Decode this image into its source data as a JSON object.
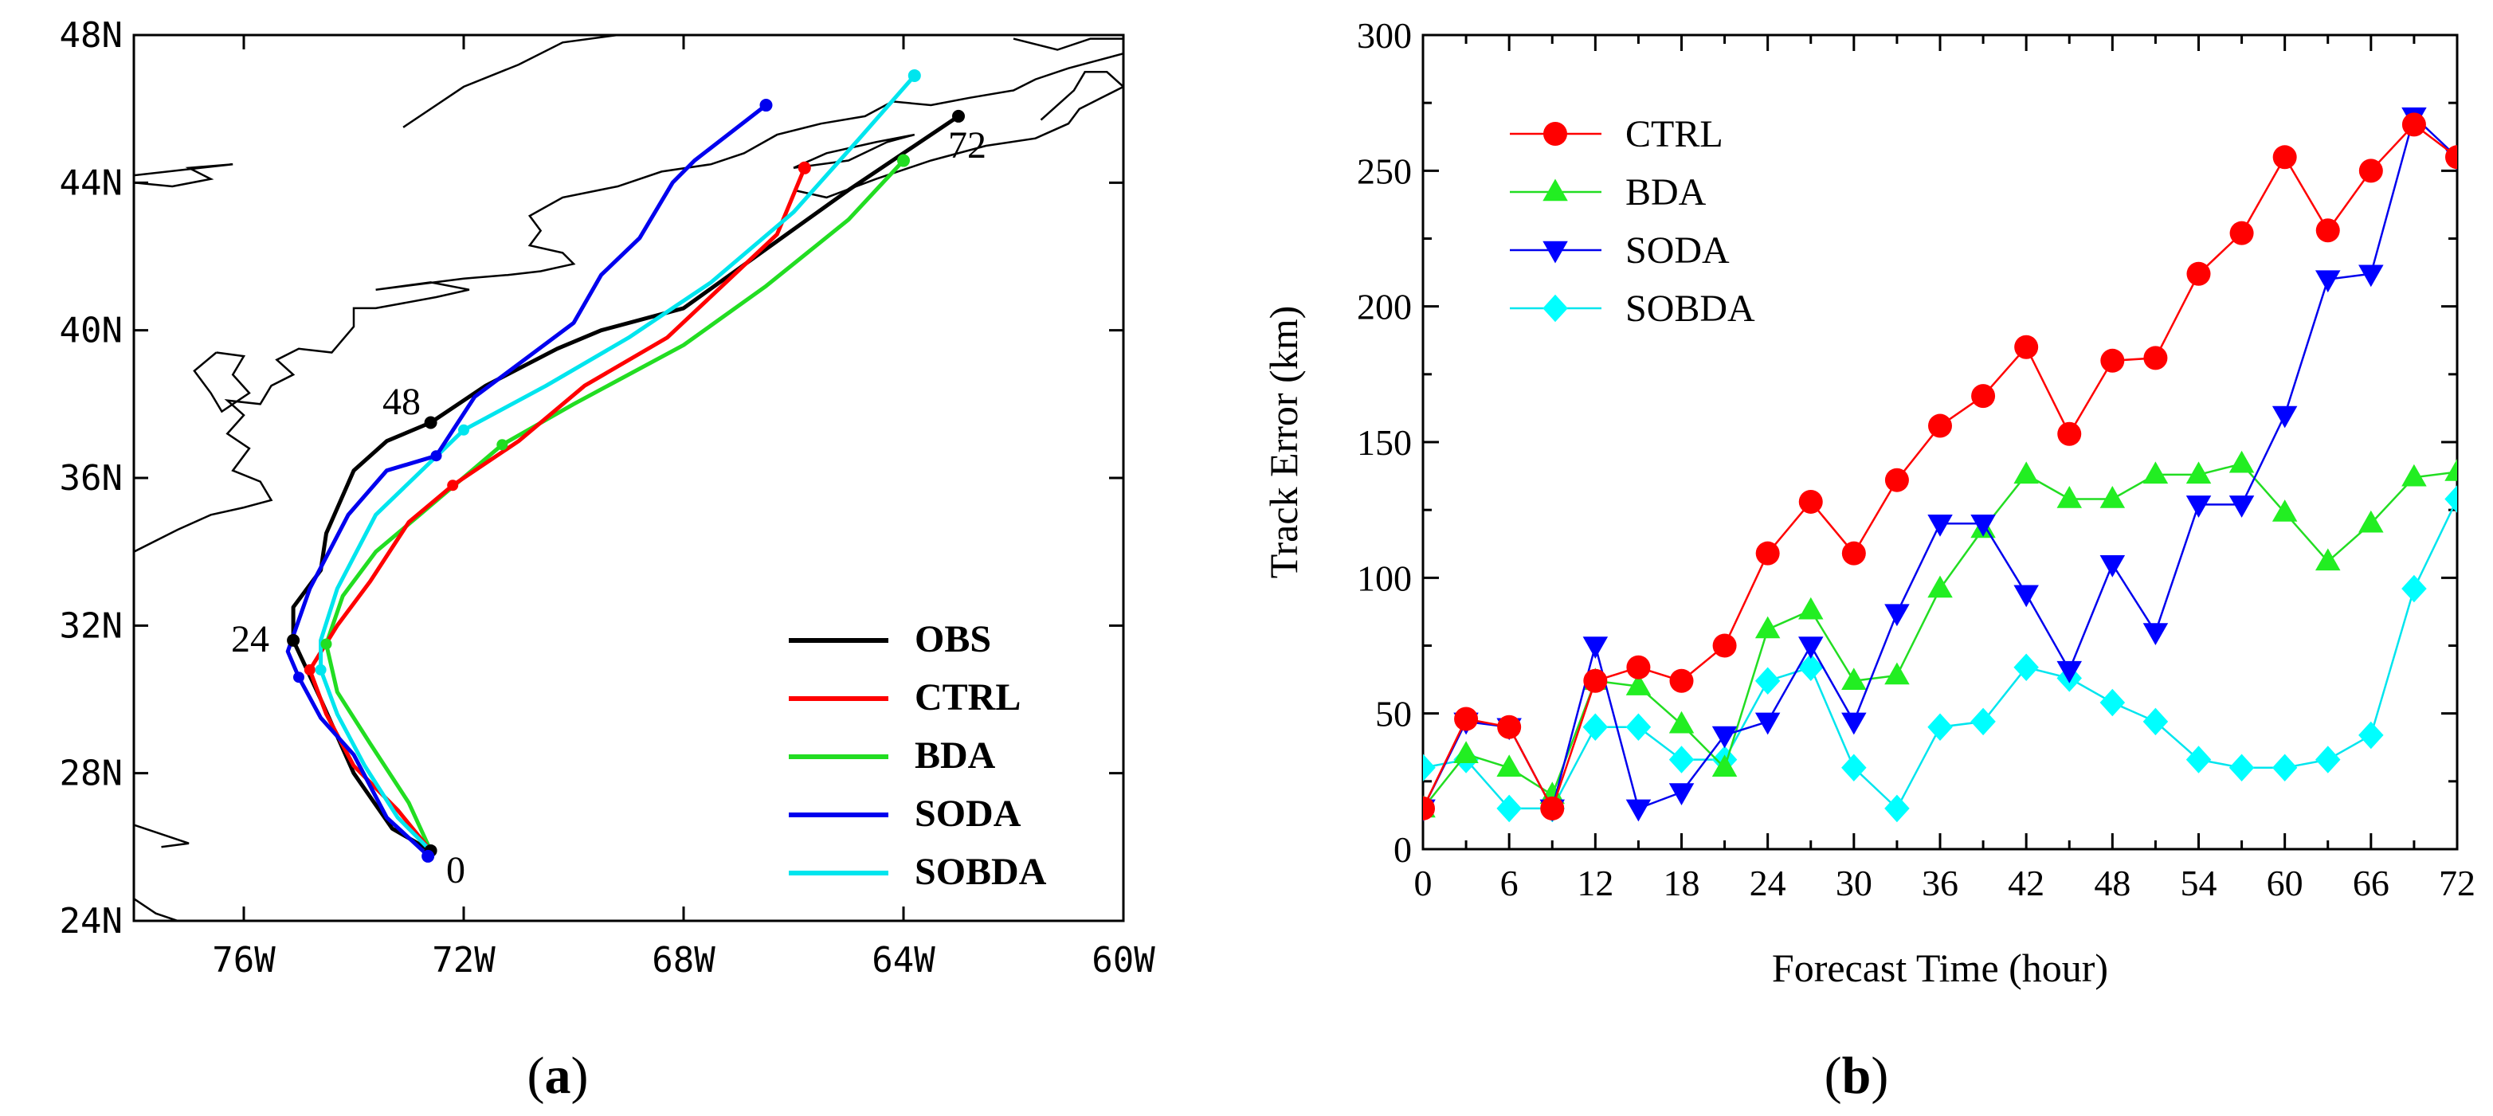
{
  "panel_a": {
    "label_open": "(",
    "label_letter": "a",
    "label_close": ")",
    "lat_labels": [
      "24N",
      "28N",
      "32N",
      "36N",
      "40N",
      "44N",
      "48N"
    ],
    "lon_labels": [
      "76W",
      "72W",
      "68W",
      "64W",
      "60W"
    ],
    "hour_labels": [
      "0",
      "24",
      "48",
      "72"
    ],
    "legend": [
      "OBS",
      "CTRL",
      "BDA",
      "SODA",
      "SOBDA"
    ],
    "colors": {
      "OBS": "#000000",
      "CTRL": "#ff0000",
      "BDA": "#22dd22",
      "SODA": "#0000ee",
      "SOBDA": "#00e5ee"
    }
  },
  "panel_b": {
    "label_open": "(",
    "label_letter": "b",
    "label_close": ")",
    "xlabel": "Forecast Time (hour)",
    "ylabel": "Track Error (km)",
    "x_ticks": [
      "0",
      "6",
      "12",
      "18",
      "24",
      "30",
      "36",
      "42",
      "48",
      "54",
      "60",
      "66",
      "72"
    ],
    "y_ticks": [
      "0",
      "50",
      "100",
      "150",
      "200",
      "250",
      "300"
    ]
  },
  "chart_data": [
    {
      "type": "line",
      "title": "",
      "xlabel": "",
      "ylabel": "",
      "x_unit": "degrees longitude (W negative)",
      "y_unit": "degrees latitude",
      "xlim": [
        -78,
        -60
      ],
      "ylim": [
        24,
        48
      ],
      "series": [
        {
          "name": "OBS",
          "lon": [
            -72.6,
            -73.3,
            -74.0,
            -74.6,
            -75.1,
            -75.1,
            -74.6,
            -74.5,
            -74.0,
            -73.4,
            -72.6,
            -71.6,
            -70.3,
            -69.5,
            -68.0,
            -66.5,
            -65.0,
            -63.0
          ],
          "lat": [
            25.9,
            26.5,
            28.0,
            30.0,
            31.6,
            32.5,
            33.5,
            34.5,
            36.2,
            37.0,
            37.5,
            38.5,
            39.5,
            40.0,
            40.6,
            42.2,
            43.8,
            45.8
          ]
        },
        {
          "name": "CTRL",
          "lon": [
            -72.6,
            -73.2,
            -74.0,
            -74.5,
            -74.8,
            -74.3,
            -73.7,
            -73.0,
            -72.2,
            -71.0,
            -69.8,
            -68.3,
            -67.3,
            -66.3,
            -65.8
          ],
          "lat": [
            25.9,
            27.0,
            28.2,
            29.6,
            30.8,
            32.0,
            33.2,
            34.8,
            35.8,
            37.0,
            38.5,
            39.8,
            41.2,
            42.6,
            44.4
          ]
        },
        {
          "name": "BDA",
          "lon": [
            -72.6,
            -73.0,
            -73.7,
            -74.3,
            -74.5,
            -74.2,
            -73.6,
            -72.8,
            -71.3,
            -70.0,
            -68.0,
            -66.5,
            -65.0,
            -64.0
          ],
          "lat": [
            25.9,
            27.2,
            28.8,
            30.2,
            31.5,
            32.8,
            34.0,
            35.0,
            36.9,
            38.0,
            39.6,
            41.2,
            43.0,
            44.6
          ]
        },
        {
          "name": "SODA",
          "lon": [
            -72.6,
            -73.4,
            -74.0,
            -74.6,
            -75.0,
            -75.2,
            -74.8,
            -74.1,
            -73.4,
            -72.5,
            -71.8,
            -70.0,
            -69.5,
            -68.8,
            -68.2,
            -67.8,
            -66.5
          ],
          "lat": [
            25.7,
            26.8,
            28.5,
            29.5,
            30.6,
            31.3,
            33.0,
            35.0,
            36.2,
            36.6,
            38.2,
            40.2,
            41.5,
            42.5,
            44.0,
            44.6,
            46.1
          ]
        },
        {
          "name": "SOBDA",
          "lon": [
            -72.6,
            -73.2,
            -73.8,
            -74.3,
            -74.6,
            -74.6,
            -74.3,
            -73.6,
            -72.0,
            -70.5,
            -69.0,
            -67.5,
            -66.0,
            -64.8,
            -63.8
          ],
          "lat": [
            25.9,
            26.8,
            28.2,
            29.6,
            30.8,
            31.6,
            33.0,
            35.0,
            37.3,
            38.5,
            39.8,
            41.3,
            43.2,
            45.2,
            46.9
          ]
        }
      ]
    },
    {
      "type": "line",
      "title": "",
      "xlabel": "Forecast Time (hour)",
      "ylabel": "Track Error (km)",
      "xlim": [
        0,
        72
      ],
      "ylim": [
        0,
        300
      ],
      "x": [
        0,
        3,
        6,
        9,
        12,
        15,
        18,
        21,
        24,
        27,
        30,
        33,
        36,
        39,
        42,
        45,
        48,
        51,
        54,
        57,
        60,
        63,
        66,
        69,
        72
      ],
      "series": [
        {
          "name": "CTRL",
          "marker": "circle",
          "values": [
            15,
            48,
            45,
            15,
            62,
            67,
            62,
            75,
            109,
            128,
            109,
            136,
            156,
            167,
            185,
            153,
            180,
            181,
            212,
            227,
            255,
            228,
            250,
            267,
            255
          ]
        },
        {
          "name": "BDA",
          "marker": "triangle-up",
          "values": [
            15,
            35,
            30,
            20,
            62,
            60,
            46,
            30,
            81,
            88,
            62,
            64,
            96,
            118,
            138,
            129,
            129,
            138,
            138,
            142,
            124,
            106,
            120,
            137,
            139
          ]
        },
        {
          "name": "SODA",
          "marker": "triangle-down",
          "values": [
            15,
            47,
            45,
            15,
            75,
            15,
            21,
            42,
            47,
            75,
            47,
            87,
            120,
            120,
            94,
            66,
            105,
            80,
            127,
            127,
            160,
            210,
            212,
            270,
            255
          ]
        },
        {
          "name": "SOBDA",
          "marker": "diamond",
          "values": [
            30,
            33,
            15,
            15,
            45,
            45,
            33,
            33,
            62,
            67,
            30,
            15,
            45,
            47,
            67,
            63,
            54,
            47,
            33,
            30,
            30,
            33,
            42,
            96,
            129
          ]
        }
      ]
    }
  ]
}
